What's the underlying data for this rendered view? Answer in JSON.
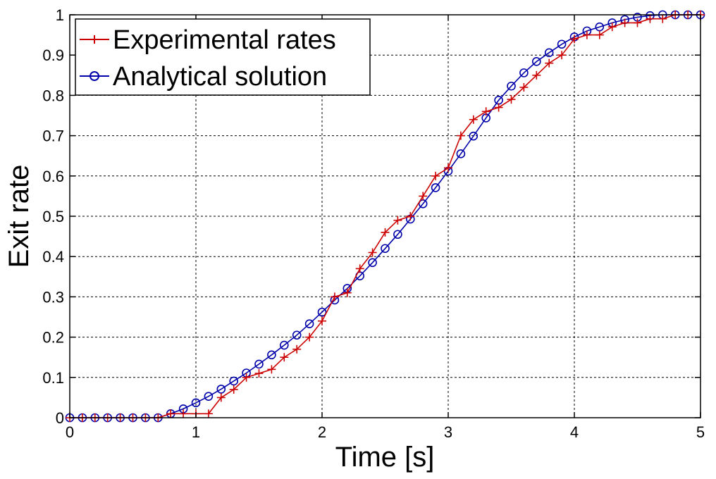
{
  "chart_data": {
    "type": "line",
    "title": "",
    "xlabel": "Time [s]",
    "ylabel": "Exit rate",
    "xlim": [
      0,
      5
    ],
    "ylim": [
      0,
      1
    ],
    "grid": true,
    "legend_position": "top-left",
    "x_ticks": [
      "0",
      "1",
      "2",
      "3",
      "4",
      "5"
    ],
    "y_ticks": [
      "0",
      "0.1",
      "0.2",
      "0.3",
      "0.4",
      "0.5",
      "0.6",
      "0.7",
      "0.8",
      "0.9",
      "1"
    ],
    "series": [
      {
        "name": "Experimental rates",
        "color": "#cc0000",
        "marker": "plus",
        "x": [
          0,
          0.1,
          0.2,
          0.3,
          0.4,
          0.5,
          0.6,
          0.7,
          0.8,
          0.9,
          1.0,
          1.1,
          1.2,
          1.3,
          1.4,
          1.5,
          1.6,
          1.7,
          1.8,
          1.9,
          2.0,
          2.1,
          2.2,
          2.3,
          2.4,
          2.5,
          2.6,
          2.7,
          2.8,
          2.9,
          3.0,
          3.1,
          3.2,
          3.3,
          3.4,
          3.5,
          3.6,
          3.7,
          3.8,
          3.9,
          4.0,
          4.1,
          4.2,
          4.3,
          4.4,
          4.5,
          4.6,
          4.7,
          4.8,
          4.9,
          5.0
        ],
        "y": [
          0,
          0,
          0,
          0,
          0,
          0,
          0,
          0,
          0.01,
          0.01,
          0.01,
          0.01,
          0.05,
          0.07,
          0.1,
          0.11,
          0.12,
          0.15,
          0.17,
          0.2,
          0.24,
          0.3,
          0.31,
          0.37,
          0.41,
          0.46,
          0.49,
          0.5,
          0.55,
          0.6,
          0.62,
          0.7,
          0.74,
          0.76,
          0.77,
          0.79,
          0.82,
          0.85,
          0.88,
          0.9,
          0.94,
          0.95,
          0.95,
          0.97,
          0.98,
          0.98,
          0.99,
          0.99,
          1.0,
          1.0,
          1.0
        ]
      },
      {
        "name": "Analytical solution",
        "color": "#0000aa",
        "marker": "circle",
        "x": [
          0,
          0.1,
          0.2,
          0.3,
          0.4,
          0.5,
          0.6,
          0.7,
          0.8,
          0.9,
          1.0,
          1.1,
          1.2,
          1.3,
          1.4,
          1.5,
          1.6,
          1.7,
          1.8,
          1.9,
          2.0,
          2.1,
          2.2,
          2.3,
          2.4,
          2.5,
          2.6,
          2.7,
          2.8,
          2.9,
          3.0,
          3.1,
          3.2,
          3.3,
          3.4,
          3.5,
          3.6,
          3.7,
          3.8,
          3.9,
          4.0,
          4.1,
          4.2,
          4.3,
          4.4,
          4.5,
          4.6,
          4.7,
          4.8,
          4.9,
          5.0
        ],
        "y": [
          0,
          0,
          0,
          0,
          0,
          0,
          0,
          0,
          0.01,
          0.022,
          0.037,
          0.053,
          0.071,
          0.091,
          0.111,
          0.133,
          0.156,
          0.18,
          0.205,
          0.233,
          0.262,
          0.292,
          0.321,
          0.352,
          0.385,
          0.42,
          0.455,
          0.493,
          0.531,
          0.571,
          0.612,
          0.655,
          0.699,
          0.744,
          0.788,
          0.823,
          0.856,
          0.884,
          0.906,
          0.927,
          0.945,
          0.96,
          0.97,
          0.98,
          0.988,
          0.994,
          0.998,
          1.0,
          1.0,
          1.0,
          1.0
        ]
      }
    ]
  }
}
